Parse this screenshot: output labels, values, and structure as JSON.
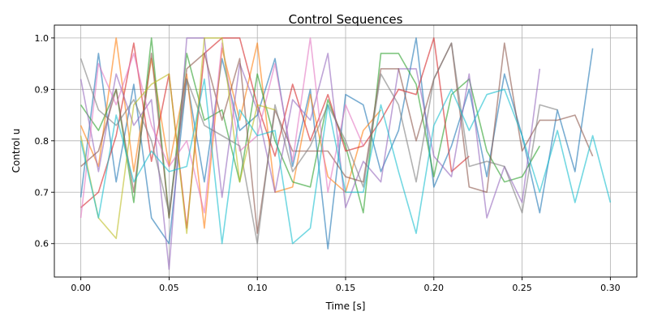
{
  "chart_data": {
    "type": "line",
    "title": "Control Sequences",
    "xlabel": "Time [s]",
    "ylabel": "Control u",
    "xlim": [
      -0.015,
      0.315
    ],
    "ylim": [
      0.535,
      1.025
    ],
    "xticks": [
      0.0,
      0.05,
      0.1,
      0.15,
      0.2,
      0.25,
      0.3
    ],
    "xtick_labels": [
      "0.00",
      "0.05",
      "0.10",
      "0.15",
      "0.20",
      "0.25",
      "0.30"
    ],
    "yticks": [
      0.6,
      0.7,
      0.8,
      0.9,
      1.0
    ],
    "ytick_labels": [
      "0.6",
      "0.7",
      "0.8",
      "0.9",
      "1.0"
    ],
    "grid": true,
    "legend": "none",
    "x_step": 0.01,
    "series": [
      {
        "color": "#1f77b4",
        "values": [
          0.69,
          0.97,
          0.72,
          0.91,
          0.65,
          0.6,
          0.92,
          0.72,
          0.96,
          0.82,
          0.85,
          0.96,
          0.75,
          0.9,
          0.59,
          0.89,
          0.87,
          0.74,
          0.82,
          1.0,
          0.71,
          0.79,
          0.9,
          0.73,
          0.93,
          0.81,
          0.66,
          0.86,
          0.74,
          0.98
        ]
      },
      {
        "color": "#ff7f0e",
        "values": [
          0.83,
          0.75,
          1.0,
          0.74,
          0.96,
          0.75,
          0.93,
          0.63,
          0.98,
          0.84,
          0.99,
          0.7,
          0.71,
          0.89,
          0.73,
          0.7,
          0.82,
          0.86
        ]
      },
      {
        "color": "#2ca02c",
        "values": [
          0.87,
          0.82,
          0.9,
          0.68,
          1.0,
          0.65,
          0.97,
          0.84,
          0.86,
          0.72,
          0.93,
          0.8,
          0.72,
          0.71,
          0.88,
          0.79,
          0.66,
          0.97,
          0.97,
          0.91,
          0.73,
          0.89,
          0.92,
          0.78,
          0.72,
          0.73,
          0.79
        ]
      },
      {
        "color": "#d62728",
        "values": [
          0.67,
          0.7,
          0.81,
          0.99,
          0.76,
          0.93,
          0.63,
          0.97,
          1.0,
          1.0,
          0.87,
          0.77,
          0.91,
          0.8,
          0.89,
          0.78,
          0.79,
          0.84,
          0.9,
          0.89,
          1.0,
          0.74,
          0.77
        ]
      },
      {
        "color": "#9467bd",
        "values": [
          0.92,
          0.74,
          0.93,
          0.83,
          0.88,
          0.55,
          1.0,
          1.0,
          0.69,
          0.95,
          0.86,
          0.7,
          0.88,
          0.84,
          0.97,
          0.67,
          0.76,
          0.72,
          0.94,
          0.94,
          0.77,
          0.73,
          0.93,
          0.65,
          0.75,
          0.68,
          0.94
        ]
      },
      {
        "color": "#8c564b",
        "values": [
          0.75,
          0.78,
          0.9,
          0.7,
          0.97,
          0.65,
          0.94,
          0.97,
          0.84,
          0.96,
          0.62,
          0.86,
          0.78,
          0.78,
          0.78,
          0.73,
          0.72,
          0.94,
          0.94,
          0.8,
          0.92,
          0.99,
          0.71,
          0.7,
          0.99,
          0.78,
          0.84,
          0.84,
          0.85,
          0.77
        ]
      },
      {
        "color": "#e377c2",
        "values": [
          0.65,
          0.95,
          0.87,
          0.97,
          0.83,
          0.75,
          0.8,
          0.66,
          0.99,
          0.78,
          0.81,
          0.95,
          0.76,
          1.0,
          0.7,
          0.87,
          0.79
        ]
      },
      {
        "color": "#7f7f7f",
        "values": [
          0.96,
          0.86,
          0.83,
          0.88,
          0.8,
          0.66,
          0.92,
          0.83,
          0.81,
          0.79,
          0.6,
          0.87,
          0.74,
          0.79,
          0.87,
          0.8,
          0.71,
          0.93,
          0.87,
          0.72,
          0.92,
          0.99,
          0.75,
          0.76,
          0.75,
          0.66,
          0.87,
          0.86
        ]
      },
      {
        "color": "#bcbd22",
        "values": [
          0.81,
          0.65,
          0.61,
          0.87,
          0.91,
          0.93,
          0.62,
          1.0,
          1.0,
          0.72,
          0.87,
          0.86
        ]
      },
      {
        "color": "#17becf",
        "values": [
          0.8,
          0.65,
          0.85,
          0.72,
          0.78,
          0.74,
          0.75,
          0.92,
          0.6,
          0.86,
          0.81,
          0.82,
          0.6,
          0.63,
          0.87,
          0.7,
          0.7,
          0.87,
          0.74,
          0.62,
          0.83,
          0.9,
          0.82,
          0.89,
          0.9,
          0.81,
          0.7,
          0.82,
          0.68,
          0.81,
          0.68
        ]
      }
    ]
  }
}
